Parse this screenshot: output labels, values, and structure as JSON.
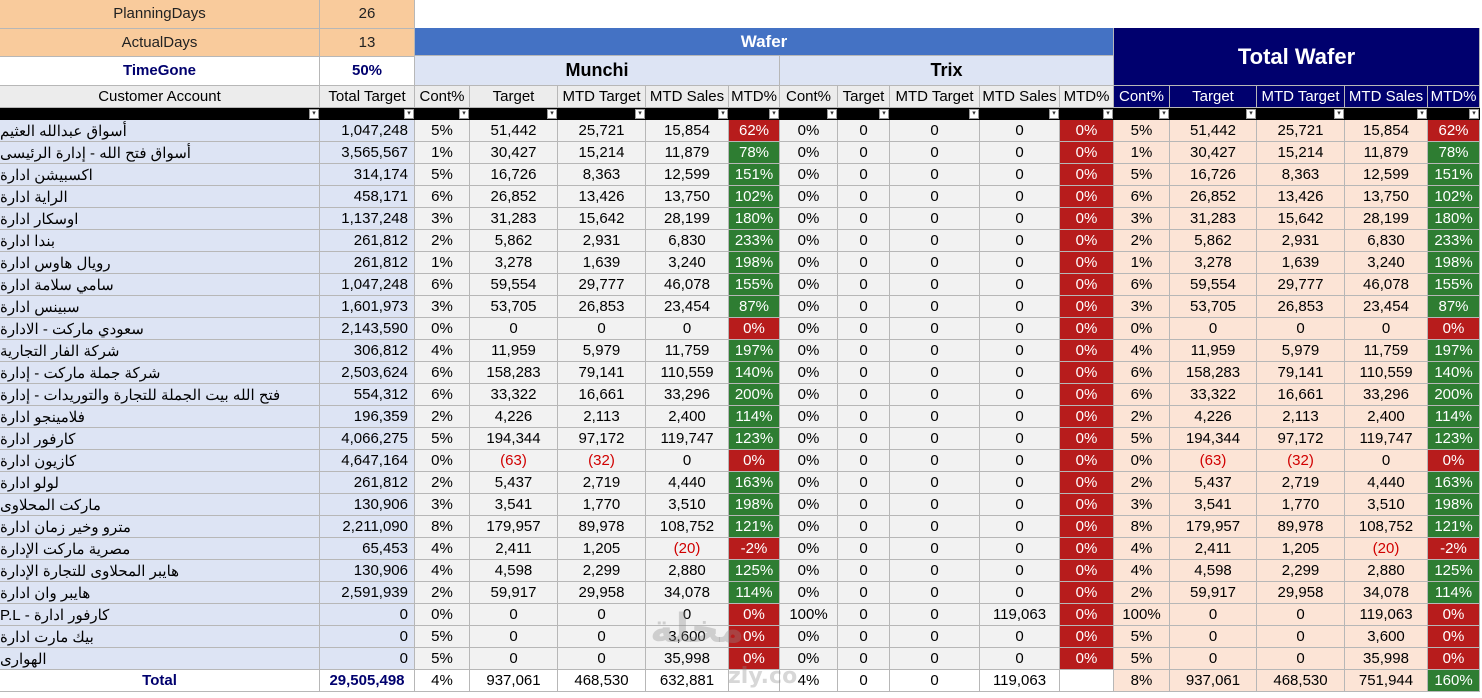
{
  "colors": {
    "orange": "#f9cb9c",
    "lightblue": "#dde4f4",
    "grayrow": "#ececec",
    "blueheader": "#4472c4",
    "navy": "#00006e",
    "peach": "#fce4d6",
    "green": "#2e7d32",
    "red": "#b71c1c",
    "negtext": "#d00000",
    "filterbar": "#000000"
  },
  "info": [
    {
      "label": "PlanningDays",
      "value": "26"
    },
    {
      "label": "ActualDays",
      "value": "13"
    },
    {
      "label": "TimeGone",
      "value": "50%"
    }
  ],
  "groups": {
    "wafer": "Wafer",
    "munchi": "Munchi",
    "trix": "Trix",
    "total_wafer": "Total Wafer"
  },
  "headers": [
    "Customer Account",
    "Total Target",
    "Cont%",
    "Target",
    "MTD Target",
    "MTD Sales",
    "MTD%",
    "Cont%",
    "Target",
    "MTD Target",
    "MTD Sales",
    "MTD%",
    "Cont%",
    "Target",
    "MTD Target",
    "MTD Sales",
    "MTD%"
  ],
  "rows": [
    {
      "cells": [
        "أسواق عبدالله العثيم",
        "1,047,248",
        "5%",
        "51,442",
        "25,721",
        "15,854",
        "62%",
        "0%",
        "0",
        "0",
        "0",
        "0%",
        "5%",
        "51,442",
        "25,721",
        "15,854",
        "62%"
      ],
      "mtd": [
        "red",
        "red",
        "red"
      ]
    },
    {
      "cells": [
        "أسواق فتح الله - إدارة الرئيسى",
        "3,565,567",
        "1%",
        "30,427",
        "15,214",
        "11,879",
        "78%",
        "0%",
        "0",
        "0",
        "0",
        "0%",
        "1%",
        "30,427",
        "15,214",
        "11,879",
        "78%"
      ],
      "mtd": [
        "green",
        "red",
        "green"
      ]
    },
    {
      "cells": [
        "اكسبيشن ادارة",
        "314,174",
        "5%",
        "16,726",
        "8,363",
        "12,599",
        "151%",
        "0%",
        "0",
        "0",
        "0",
        "0%",
        "5%",
        "16,726",
        "8,363",
        "12,599",
        "151%"
      ],
      "mtd": [
        "green",
        "red",
        "green"
      ]
    },
    {
      "cells": [
        "الراية ادارة",
        "458,171",
        "6%",
        "26,852",
        "13,426",
        "13,750",
        "102%",
        "0%",
        "0",
        "0",
        "0",
        "0%",
        "6%",
        "26,852",
        "13,426",
        "13,750",
        "102%"
      ],
      "mtd": [
        "green",
        "red",
        "green"
      ]
    },
    {
      "cells": [
        "اوسكار ادارة",
        "1,137,248",
        "3%",
        "31,283",
        "15,642",
        "28,199",
        "180%",
        "0%",
        "0",
        "0",
        "0",
        "0%",
        "3%",
        "31,283",
        "15,642",
        "28,199",
        "180%"
      ],
      "mtd": [
        "green",
        "red",
        "green"
      ]
    },
    {
      "cells": [
        "بندا ادارة",
        "261,812",
        "2%",
        "5,862",
        "2,931",
        "6,830",
        "233%",
        "0%",
        "0",
        "0",
        "0",
        "0%",
        "2%",
        "5,862",
        "2,931",
        "6,830",
        "233%"
      ],
      "mtd": [
        "green",
        "red",
        "green"
      ]
    },
    {
      "cells": [
        "رويال هاوس ادارة",
        "261,812",
        "1%",
        "3,278",
        "1,639",
        "3,240",
        "198%",
        "0%",
        "0",
        "0",
        "0",
        "0%",
        "1%",
        "3,278",
        "1,639",
        "3,240",
        "198%"
      ],
      "mtd": [
        "green",
        "red",
        "green"
      ]
    },
    {
      "cells": [
        "سامي سلامة ادارة",
        "1,047,248",
        "6%",
        "59,554",
        "29,777",
        "46,078",
        "155%",
        "0%",
        "0",
        "0",
        "0",
        "0%",
        "6%",
        "59,554",
        "29,777",
        "46,078",
        "155%"
      ],
      "mtd": [
        "green",
        "red",
        "green"
      ]
    },
    {
      "cells": [
        "سبينس ادارة",
        "1,601,973",
        "3%",
        "53,705",
        "26,853",
        "23,454",
        "87%",
        "0%",
        "0",
        "0",
        "0",
        "0%",
        "3%",
        "53,705",
        "26,853",
        "23,454",
        "87%"
      ],
      "mtd": [
        "green",
        "red",
        "green"
      ]
    },
    {
      "cells": [
        "سعودي ماركت - الادارة",
        "2,143,590",
        "0%",
        "0",
        "0",
        "0",
        "0%",
        "0%",
        "0",
        "0",
        "0",
        "0%",
        "0%",
        "0",
        "0",
        "0",
        "0%"
      ],
      "mtd": [
        "red",
        "red",
        "red"
      ]
    },
    {
      "cells": [
        "شركة الفار التجارية",
        "306,812",
        "4%",
        "11,959",
        "5,979",
        "11,759",
        "197%",
        "0%",
        "0",
        "0",
        "0",
        "0%",
        "4%",
        "11,959",
        "5,979",
        "11,759",
        "197%"
      ],
      "mtd": [
        "green",
        "red",
        "green"
      ]
    },
    {
      "cells": [
        "شركة جملة ماركت - إدارة",
        "2,503,624",
        "6%",
        "158,283",
        "79,141",
        "110,559",
        "140%",
        "0%",
        "0",
        "0",
        "0",
        "0%",
        "6%",
        "158,283",
        "79,141",
        "110,559",
        "140%"
      ],
      "mtd": [
        "green",
        "red",
        "green"
      ]
    },
    {
      "cells": [
        "فتح الله بيت الجملة للتجارة والتوريدات - إدارة",
        "554,312",
        "6%",
        "33,322",
        "16,661",
        "33,296",
        "200%",
        "0%",
        "0",
        "0",
        "0",
        "0%",
        "6%",
        "33,322",
        "16,661",
        "33,296",
        "200%"
      ],
      "mtd": [
        "green",
        "red",
        "green"
      ]
    },
    {
      "cells": [
        "فلامينجو ادارة",
        "196,359",
        "2%",
        "4,226",
        "2,113",
        "2,400",
        "114%",
        "0%",
        "0",
        "0",
        "0",
        "0%",
        "2%",
        "4,226",
        "2,113",
        "2,400",
        "114%"
      ],
      "mtd": [
        "green",
        "red",
        "green"
      ]
    },
    {
      "cells": [
        "كارفور ادارة",
        "4,066,275",
        "5%",
        "194,344",
        "97,172",
        "119,747",
        "123%",
        "0%",
        "0",
        "0",
        "0",
        "0%",
        "5%",
        "194,344",
        "97,172",
        "119,747",
        "123%"
      ],
      "mtd": [
        "green",
        "red",
        "green"
      ]
    },
    {
      "cells": [
        "كازيون ادارة",
        "4,647,164",
        "0%",
        "(63)",
        "(32)",
        "0",
        "0%",
        "0%",
        "0",
        "0",
        "0",
        "0%",
        "0%",
        "(63)",
        "(32)",
        "0",
        "0%"
      ],
      "mtd": [
        "red",
        "red",
        "red"
      ]
    },
    {
      "cells": [
        "لولو ادارة",
        "261,812",
        "2%",
        "5,437",
        "2,719",
        "4,440",
        "163%",
        "0%",
        "0",
        "0",
        "0",
        "0%",
        "2%",
        "5,437",
        "2,719",
        "4,440",
        "163%"
      ],
      "mtd": [
        "green",
        "red",
        "green"
      ]
    },
    {
      "cells": [
        "ماركت المحلاوى",
        "130,906",
        "3%",
        "3,541",
        "1,770",
        "3,510",
        "198%",
        "0%",
        "0",
        "0",
        "0",
        "0%",
        "3%",
        "3,541",
        "1,770",
        "3,510",
        "198%"
      ],
      "mtd": [
        "green",
        "red",
        "green"
      ]
    },
    {
      "cells": [
        "مترو وخير زمان ادارة",
        "2,211,090",
        "8%",
        "179,957",
        "89,978",
        "108,752",
        "121%",
        "0%",
        "0",
        "0",
        "0",
        "0%",
        "8%",
        "179,957",
        "89,978",
        "108,752",
        "121%"
      ],
      "mtd": [
        "green",
        "red",
        "green"
      ]
    },
    {
      "cells": [
        "مصرية ماركت الإدارة",
        "65,453",
        "4%",
        "2,411",
        "1,205",
        "(20)",
        "-2%",
        "0%",
        "0",
        "0",
        "0",
        "0%",
        "4%",
        "2,411",
        "1,205",
        "(20)",
        "-2%"
      ],
      "mtd": [
        "red",
        "red",
        "red"
      ]
    },
    {
      "cells": [
        "هايبر المحلاوى للتجارة الإدارة",
        "130,906",
        "4%",
        "4,598",
        "2,299",
        "2,880",
        "125%",
        "0%",
        "0",
        "0",
        "0",
        "0%",
        "4%",
        "4,598",
        "2,299",
        "2,880",
        "125%"
      ],
      "mtd": [
        "green",
        "red",
        "green"
      ]
    },
    {
      "cells": [
        "هايبر وان ادارة",
        "2,591,939",
        "2%",
        "59,917",
        "29,958",
        "34,078",
        "114%",
        "0%",
        "0",
        "0",
        "0",
        "0%",
        "2%",
        "59,917",
        "29,958",
        "34,078",
        "114%"
      ],
      "mtd": [
        "green",
        "red",
        "green"
      ]
    },
    {
      "cells": [
        "كارفور ادارة - P.L",
        "0",
        "0%",
        "0",
        "0",
        "0",
        "0%",
        "100%",
        "0",
        "0",
        "119,063",
        "0%",
        "100%",
        "0",
        "0",
        "119,063",
        "0%"
      ],
      "mtd": [
        "red",
        "red",
        "red"
      ]
    },
    {
      "cells": [
        "بيك مارت ادارة",
        "0",
        "5%",
        "0",
        "0",
        "3,600",
        "0%",
        "0%",
        "0",
        "0",
        "0",
        "0%",
        "5%",
        "0",
        "0",
        "3,600",
        "0%"
      ],
      "mtd": [
        "red",
        "red",
        "red"
      ]
    },
    {
      "cells": [
        "الهوارى",
        "0",
        "5%",
        "0",
        "0",
        "35,998",
        "0%",
        "0%",
        "0",
        "0",
        "0",
        "0%",
        "5%",
        "0",
        "0",
        "35,998",
        "0%"
      ],
      "mtd": [
        "red",
        "red",
        "red"
      ]
    }
  ],
  "total": {
    "cells": [
      "Total",
      "29,505,498",
      "4%",
      "937,061",
      "468,530",
      "632,881",
      "",
      "4%",
      "0",
      "0",
      "119,063",
      "",
      "8%",
      "937,061",
      "468,530",
      "751,944",
      "160%"
    ],
    "mtd": [
      "",
      "",
      "green"
    ]
  },
  "watermark": {
    "logo": "مخلة",
    "site": "zly.co"
  }
}
